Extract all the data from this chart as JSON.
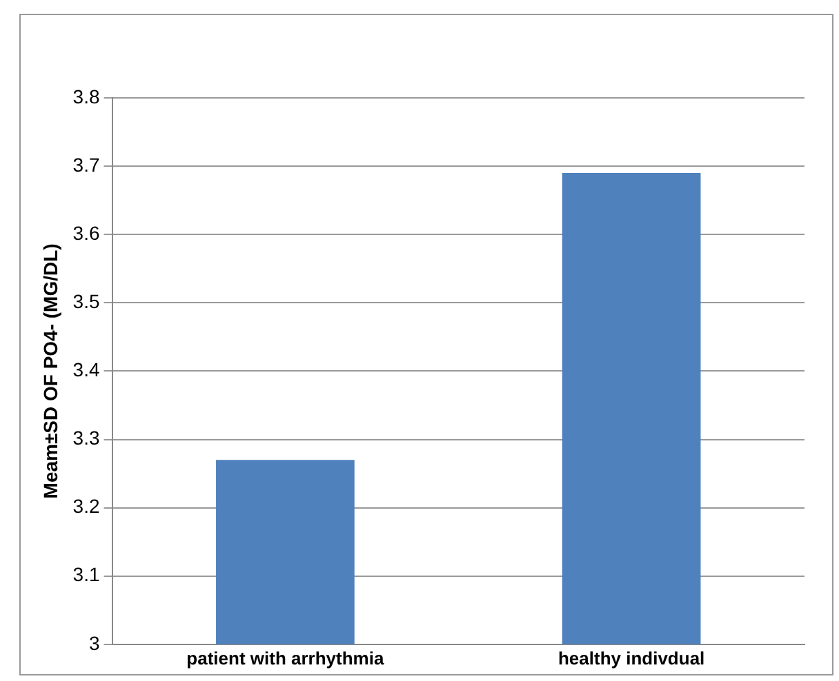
{
  "chart_data": {
    "type": "bar",
    "ylabel": "Meam±SD OF PO4- (MG/DL)",
    "categories": [
      "patient with arrhythmia",
      "healthy indivdual"
    ],
    "series": [
      {
        "color": "#4f81bd",
        "values": [
          3.27,
          3.69
        ]
      }
    ],
    "ylim": [
      3,
      3.8
    ],
    "yticks": [
      3,
      3.1,
      3.2,
      3.3,
      3.4,
      3.5,
      3.6,
      3.7,
      3.8
    ],
    "grid": "y",
    "legend": false
  }
}
